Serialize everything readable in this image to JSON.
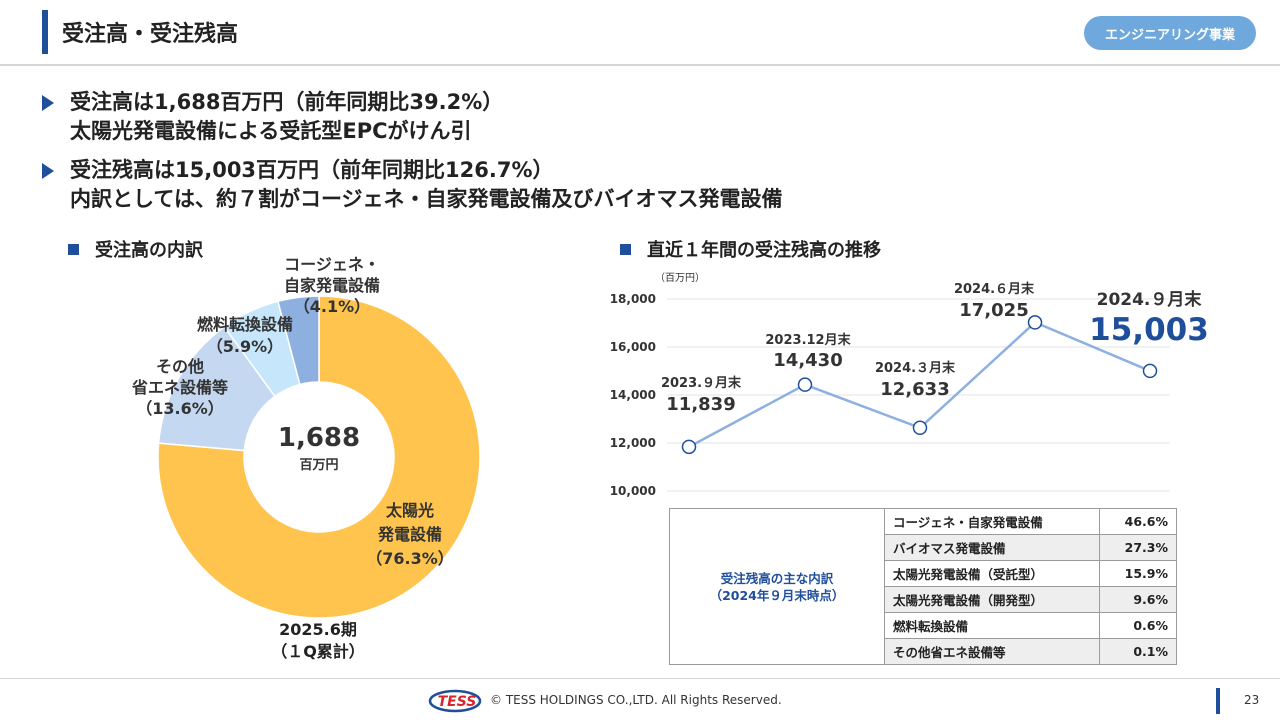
{
  "header": {
    "title": "受注高・受注残高",
    "badge": "エンジニアリング事業"
  },
  "bullets": [
    {
      "line1": "受注高は1,688百万円（前年同期比39.2%）",
      "line2": "太陽光発電設備による受託型EPCがけん引"
    },
    {
      "line1": "受注残高は15,003百万円（前年同期比126.7%）",
      "line2": "内訳としては、約７割がコージェネ・自家発電設備及びバイオマス発電設備"
    }
  ],
  "donut_section": {
    "heading": "受注高の内訳",
    "center_value": "1,688",
    "center_unit": "百万円",
    "period_line1": "2025.6期",
    "period_line2": "（１Q累計）"
  },
  "line_section": {
    "heading": "直近１年間の受注残高の推移"
  },
  "chart_data": [
    {
      "type": "pie",
      "labels": [
        "太陽光発電設備",
        "その他省エネ設備等",
        "燃料転換設備",
        "コージェネ・自家発電設備"
      ],
      "values": [
        76.3,
        13.6,
        5.9,
        4.1
      ],
      "label_lines": [
        [
          "太陽光",
          "発電設備",
          "（76.3%）"
        ],
        [
          "その他",
          "省エネ設備等",
          "（13.6%）"
        ],
        [
          "燃料転換設備",
          "（5.9%）"
        ],
        [
          "コージェネ・",
          "自家発電設備",
          "（4.1%）"
        ]
      ],
      "colors": [
        "#ffc44d",
        "#c5d8f1",
        "#c6e6fb",
        "#8eb0e0"
      ]
    },
    {
      "type": "line",
      "unit_label": "（百万円）",
      "categories": [
        "2023.９月末",
        "2023.12月末",
        "2024.３月末",
        "2024.６月末",
        "2024.９月末"
      ],
      "values": [
        11839,
        14430,
        12633,
        17025,
        15003
      ],
      "value_labels": [
        "11,839",
        "14,430",
        "12,633",
        "17,025",
        "15,003"
      ],
      "ylim": [
        10000,
        18000
      ],
      "yticks": [
        10000,
        12000,
        14000,
        16000,
        18000
      ],
      "ytick_labels": [
        "10,000",
        "12,000",
        "14,000",
        "16,000",
        "18,000"
      ],
      "line_color": "#8eb0e0",
      "highlight_color": "#1f4e9a"
    }
  ],
  "breakdown_table": {
    "label_line1": "受注残高の主な内訳",
    "label_line2": "（2024年９月末時点）",
    "rows": [
      {
        "category": "コージェネ・自家発電設備",
        "pct": "46.6%"
      },
      {
        "category": "バイオマス発電設備",
        "pct": "27.3%"
      },
      {
        "category": "太陽光発電設備（受託型）",
        "pct": "15.9%"
      },
      {
        "category": "太陽光発電設備（開発型）",
        "pct": "9.6%"
      },
      {
        "category": "燃料転換設備",
        "pct": "0.6%"
      },
      {
        "category": "その他省エネ設備等",
        "pct": "0.1%"
      }
    ]
  },
  "footer": {
    "logo_text": "TESS",
    "copyright": "© TESS HOLDINGS CO.,LTD. All Rights Reserved.",
    "page": "23"
  }
}
